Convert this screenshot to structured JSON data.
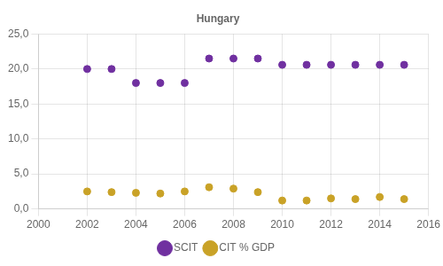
{
  "chart_data": {
    "type": "scatter",
    "title": "Hungary",
    "x": [
      2002,
      2003,
      2004,
      2005,
      2006,
      2007,
      2008,
      2009,
      2010,
      2011,
      2012,
      2013,
      2014,
      2015
    ],
    "series": [
      {
        "name": "SCIT",
        "color": "#7030A0",
        "values": [
          20.0,
          20.0,
          18.0,
          18.0,
          18.0,
          21.5,
          21.5,
          21.5,
          20.6,
          20.6,
          20.6,
          20.6,
          20.6,
          20.6
        ]
      },
      {
        "name": "CIT % GDP",
        "color": "#C9A227",
        "values": [
          2.5,
          2.4,
          2.3,
          2.2,
          2.5,
          3.1,
          2.9,
          2.4,
          1.2,
          1.2,
          1.5,
          1.4,
          1.7,
          1.4
        ]
      }
    ],
    "xlim": [
      2000,
      2016
    ],
    "xticks": [
      2000,
      2002,
      2004,
      2006,
      2008,
      2010,
      2012,
      2014,
      2016
    ],
    "ylim": [
      0,
      25
    ],
    "yticks": [
      {
        "value": 0,
        "label": "0,0"
      },
      {
        "value": 5,
        "label": "5,0"
      },
      {
        "value": 10,
        "label": "10,0"
      },
      {
        "value": 15,
        "label": "15,0"
      },
      {
        "value": 20,
        "label": "20,0"
      },
      {
        "value": 25,
        "label": "25,0"
      }
    ],
    "grid": true,
    "legend": "bottom"
  }
}
